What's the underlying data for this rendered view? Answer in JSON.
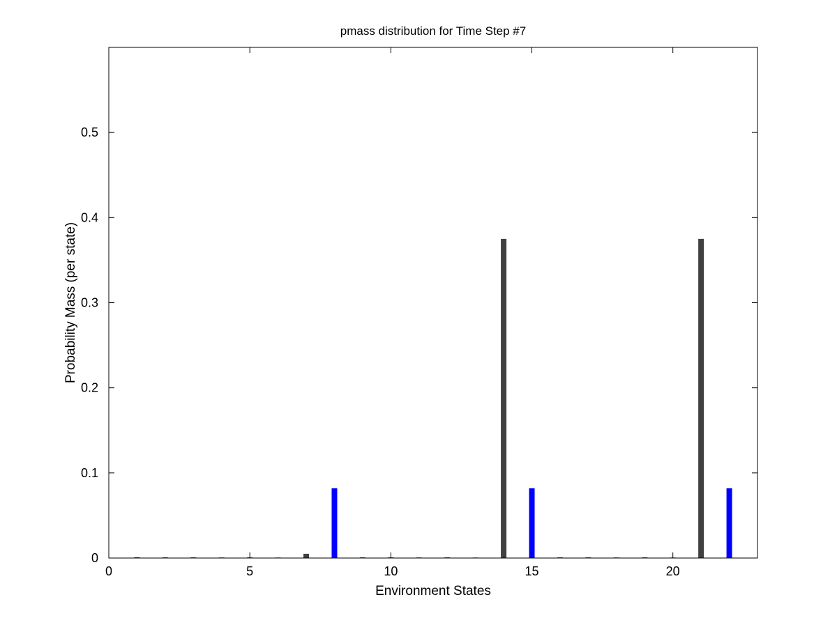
{
  "chart_data": {
    "type": "bar",
    "title": "pmass distribution for Time Step #7",
    "xlabel": "Environment States",
    "ylabel": "Probability Mass (per state)",
    "xlim": [
      0,
      23
    ],
    "ylim": [
      0,
      0.6
    ],
    "xticks": [
      0,
      5,
      10,
      15,
      20
    ],
    "yticks": [
      0,
      0.1,
      0.2,
      0.3,
      0.4,
      0.5
    ],
    "xtick_labels": [
      "0",
      "5",
      "10",
      "15",
      "20"
    ],
    "ytick_labels": [
      "0",
      "0.1",
      "0.2",
      "0.3",
      "0.4",
      "0.5"
    ],
    "grid": false,
    "legend": "none",
    "x": [
      1,
      2,
      3,
      4,
      5,
      6,
      7,
      8,
      9,
      10,
      11,
      12,
      13,
      14,
      15,
      16,
      17,
      18,
      19,
      20,
      21,
      22
    ],
    "values": [
      0.0005,
      0.0005,
      0.0005,
      0.0005,
      0.0005,
      0.0005,
      0.005,
      0.082,
      0.0005,
      0.0005,
      0.0005,
      0.0005,
      0.0005,
      0.375,
      0.082,
      0.0005,
      0.0005,
      0.0005,
      0.0005,
      0.0005,
      0.375,
      0.082
    ],
    "bar_colors": [
      "#0000ff",
      "#008000",
      "#ff0000",
      "#00bfbf",
      "#bf00bf",
      "#bfbf00",
      "#404040",
      "#0000ff",
      "#008000",
      "#ff0000",
      "#00bfbf",
      "#bf00bf",
      "#bfbf00",
      "#404040",
      "#0000ff",
      "#008000",
      "#ff0000",
      "#00bfbf",
      "#bf00bf",
      "#bfbf00",
      "#404040",
      "#0000ff"
    ]
  }
}
